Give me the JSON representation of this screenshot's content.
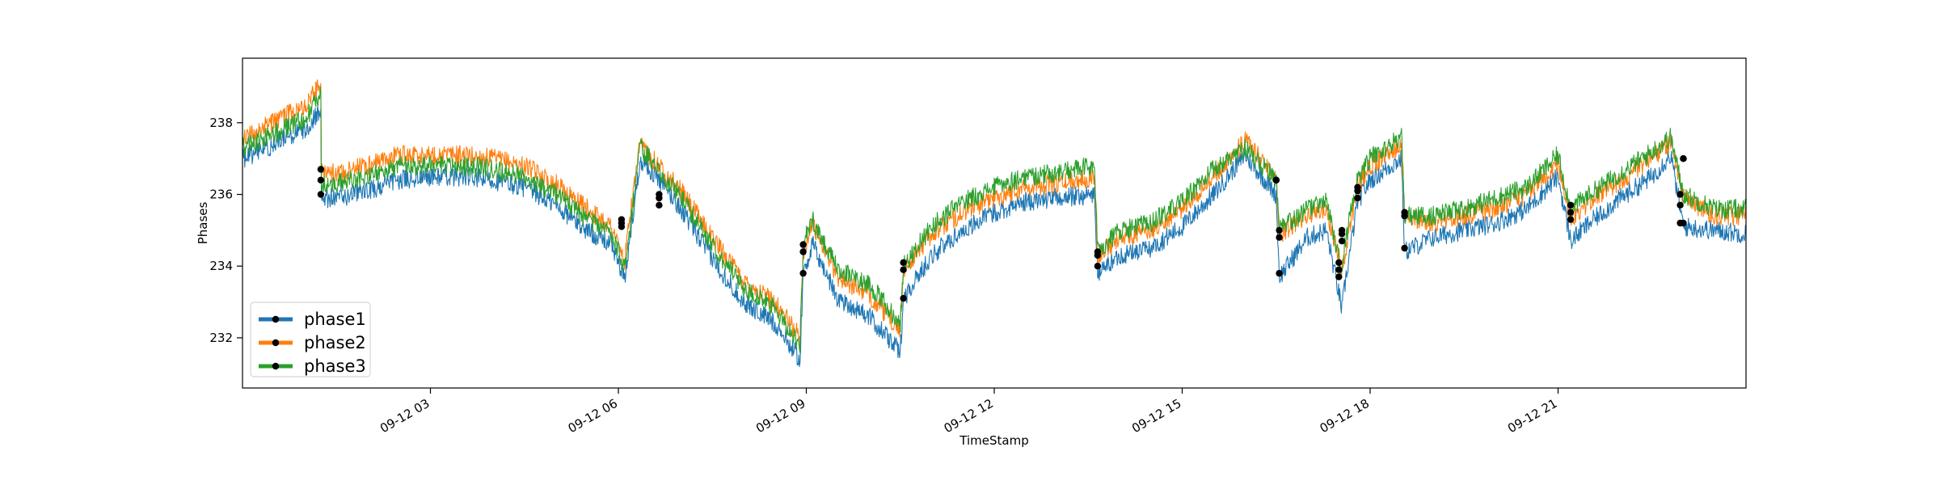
{
  "chart_data": {
    "type": "line",
    "title": "",
    "xlabel": "TimeStamp",
    "ylabel": "Phases",
    "x_unit": "hours since 09-12 00:00",
    "xlim": [
      0,
      24
    ],
    "ylim": [
      230.6,
      239.8
    ],
    "x_ticks": [
      {
        "value": 3,
        "label": "09-12 03"
      },
      {
        "value": 6,
        "label": "09-12 06"
      },
      {
        "value": 9,
        "label": "09-12 09"
      },
      {
        "value": 12,
        "label": "09-12 12"
      },
      {
        "value": 15,
        "label": "09-12 15"
      },
      {
        "value": 18,
        "label": "09-12 18"
      },
      {
        "value": 21,
        "label": "09-12 21"
      }
    ],
    "y_ticks": [
      232,
      234,
      236,
      238
    ],
    "legend_position": "lower-left",
    "grid": false,
    "series": [
      {
        "name": "phase1",
        "color": "#1f77b4",
        "x": [
          0,
          0.5,
          1.0,
          1.25,
          1.26,
          1.5,
          2.0,
          2.5,
          3.0,
          3.5,
          4.0,
          4.5,
          5.0,
          5.5,
          5.9,
          6.1,
          6.2,
          6.35,
          6.6,
          7.0,
          7.5,
          8.0,
          8.5,
          8.9,
          8.95,
          9.1,
          9.5,
          10.0,
          10.5,
          10.55,
          11.0,
          11.5,
          12.0,
          12.5,
          13.0,
          13.6,
          13.65,
          14.0,
          14.5,
          15.0,
          15.5,
          16.0,
          16.5,
          16.55,
          17.0,
          17.3,
          17.55,
          17.6,
          17.8,
          18.0,
          18.5,
          18.55,
          19.0,
          19.5,
          20.0,
          20.5,
          21.0,
          21.2,
          21.5,
          22.0,
          22.5,
          22.8,
          23.0,
          23.5,
          24.0
        ],
        "values": [
          237.0,
          237.4,
          237.8,
          238.4,
          235.9,
          235.9,
          236.1,
          236.4,
          236.5,
          236.5,
          236.4,
          236.2,
          235.7,
          235.0,
          234.6,
          233.6,
          235.0,
          237.0,
          236.5,
          235.6,
          234.2,
          233.0,
          232.4,
          231.4,
          233.8,
          234.6,
          233.1,
          232.6,
          231.6,
          233.1,
          234.3,
          235.0,
          235.5,
          235.8,
          235.9,
          236.0,
          233.8,
          234.3,
          234.5,
          235.1,
          236.0,
          237.1,
          236.0,
          233.7,
          234.8,
          235.0,
          232.8,
          233.5,
          235.8,
          236.4,
          237.0,
          234.4,
          234.8,
          235.0,
          235.2,
          235.6,
          236.5,
          234.7,
          235.2,
          235.9,
          236.5,
          237.1,
          235.1,
          235.0,
          234.9
        ]
      },
      {
        "name": "phase2",
        "color": "#ff7f0e",
        "x": [
          0,
          0.5,
          1.0,
          1.25,
          1.26,
          1.5,
          2.0,
          2.5,
          3.0,
          3.5,
          4.0,
          4.5,
          5.0,
          5.5,
          5.9,
          6.1,
          6.2,
          6.35,
          6.6,
          7.0,
          7.5,
          8.0,
          8.5,
          8.9,
          8.95,
          9.1,
          9.5,
          10.0,
          10.5,
          10.55,
          11.0,
          11.5,
          12.0,
          12.5,
          13.0,
          13.6,
          13.65,
          14.0,
          14.5,
          15.0,
          15.5,
          16.0,
          16.5,
          16.55,
          17.0,
          17.3,
          17.55,
          17.6,
          17.8,
          18.0,
          18.5,
          18.55,
          19.0,
          19.5,
          20.0,
          20.5,
          21.0,
          21.2,
          21.5,
          22.0,
          22.5,
          22.8,
          23.0,
          23.5,
          24.0
        ],
        "values": [
          237.6,
          238.0,
          238.5,
          239.1,
          236.6,
          236.6,
          236.8,
          237.1,
          237.1,
          237.1,
          237.0,
          236.8,
          236.3,
          235.6,
          235.1,
          234.1,
          235.6,
          237.4,
          236.9,
          236.1,
          234.8,
          233.6,
          233.0,
          232.0,
          234.4,
          235.2,
          233.7,
          233.2,
          232.2,
          233.9,
          234.9,
          235.5,
          235.9,
          236.2,
          236.3,
          236.5,
          234.3,
          234.8,
          235.0,
          235.6,
          236.5,
          237.5,
          236.5,
          234.9,
          235.4,
          235.6,
          233.9,
          234.4,
          236.2,
          236.8,
          237.4,
          235.4,
          235.2,
          235.4,
          235.6,
          236.0,
          236.9,
          235.3,
          235.8,
          236.4,
          237.0,
          237.5,
          235.9,
          235.4,
          235.4
        ]
      },
      {
        "name": "phase3",
        "color": "#2ca02c",
        "x": [
          0,
          0.5,
          1.0,
          1.25,
          1.26,
          1.5,
          2.0,
          2.5,
          3.0,
          3.5,
          4.0,
          4.5,
          5.0,
          5.5,
          5.9,
          6.1,
          6.2,
          6.35,
          6.6,
          7.0,
          7.5,
          8.0,
          8.5,
          8.9,
          8.95,
          9.1,
          9.5,
          10.0,
          10.5,
          10.55,
          11.0,
          11.5,
          12.0,
          12.5,
          13.0,
          13.6,
          13.65,
          14.0,
          14.5,
          15.0,
          15.5,
          16.0,
          16.5,
          16.55,
          17.0,
          17.3,
          17.55,
          17.6,
          17.8,
          18.0,
          18.5,
          18.55,
          19.0,
          19.5,
          20.0,
          20.5,
          21.0,
          21.2,
          21.5,
          22.0,
          22.5,
          22.8,
          23.0,
          23.5,
          24.0
        ],
        "values": [
          237.3,
          237.7,
          238.1,
          238.8,
          236.3,
          236.3,
          236.5,
          236.8,
          236.8,
          236.8,
          236.7,
          236.5,
          236.0,
          235.3,
          234.9,
          233.9,
          235.3,
          237.3,
          236.8,
          235.9,
          234.6,
          233.4,
          232.8,
          231.8,
          234.6,
          235.3,
          233.9,
          233.5,
          232.4,
          234.0,
          235.1,
          235.8,
          236.2,
          236.5,
          236.6,
          236.8,
          234.4,
          235.0,
          235.2,
          235.8,
          236.7,
          237.3,
          236.4,
          235.0,
          235.6,
          235.8,
          233.8,
          234.7,
          236.4,
          237.0,
          237.6,
          235.4,
          235.4,
          235.6,
          235.9,
          236.2,
          237.1,
          235.6,
          236.0,
          236.6,
          237.2,
          237.6,
          236.0,
          235.6,
          235.6
        ]
      }
    ],
    "event_markers": [
      {
        "x": 1.25,
        "values": [
          236.0,
          236.4,
          236.7
        ]
      },
      {
        "x": 6.05,
        "values": [
          235.1,
          235.2,
          235.3
        ]
      },
      {
        "x": 6.65,
        "values": [
          235.7,
          235.9,
          236.0
        ]
      },
      {
        "x": 8.95,
        "values": [
          233.8,
          234.4,
          234.6
        ]
      },
      {
        "x": 10.55,
        "values": [
          233.1,
          233.9,
          234.1
        ]
      },
      {
        "x": 13.65,
        "values": [
          234.0,
          234.3,
          234.4
        ]
      },
      {
        "x": 16.5,
        "values": [
          236.4,
          236.4,
          236.4
        ]
      },
      {
        "x": 16.55,
        "values": [
          233.8,
          234.8,
          235.0
        ]
      },
      {
        "x": 17.5,
        "values": [
          233.7,
          233.9,
          234.1
        ]
      },
      {
        "x": 17.55,
        "values": [
          234.7,
          234.9,
          235.0
        ]
      },
      {
        "x": 17.8,
        "values": [
          235.9,
          236.1,
          236.2
        ]
      },
      {
        "x": 18.55,
        "values": [
          234.5,
          235.4,
          235.5
        ]
      },
      {
        "x": 21.2,
        "values": [
          235.3,
          235.5,
          235.7
        ]
      },
      {
        "x": 22.95,
        "values": [
          235.2,
          235.7,
          236.0
        ]
      },
      {
        "x": 23.0,
        "values": [
          235.2,
          237.0,
          237.0
        ]
      }
    ]
  }
}
